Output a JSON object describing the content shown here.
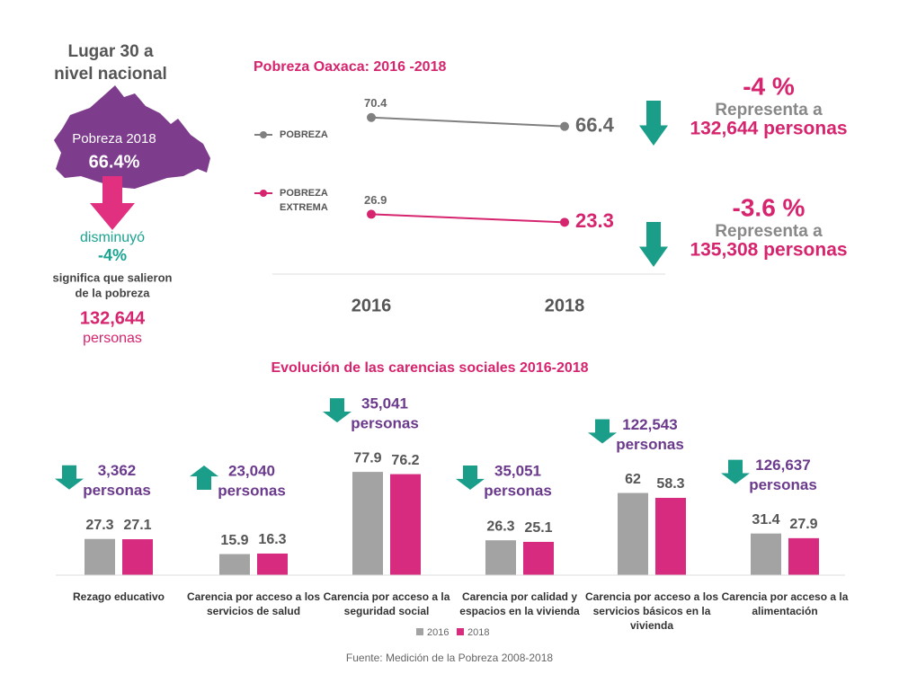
{
  "left_panel": {
    "title_line1": "Lugar 30 a",
    "title_line2": "nivel nacional",
    "map_label": "Pobreza 2018",
    "map_value": "66.4%",
    "change_label": "disminuyó",
    "change_value": "-4%",
    "note_line1": "significa que salieron",
    "note_line2": "de la pobreza",
    "people_count": "132,644",
    "people_unit": "personas"
  },
  "chart_data": [
    {
      "type": "line",
      "title": "Pobreza Oaxaca: 2016 -2018",
      "categories": [
        "2016",
        "2018"
      ],
      "ylim": [
        0,
        80
      ],
      "series": [
        {
          "name": "POBREZA",
          "color": "#808080",
          "values": [
            70.4,
            66.4
          ]
        },
        {
          "name": "POBREZA EXTREMA",
          "color": "#d6246e",
          "values": [
            26.9,
            23.3
          ]
        }
      ],
      "annotations": [
        {
          "change": "-4 %",
          "text": "Representa a",
          "people": "132,644 personas"
        },
        {
          "change": "-3.6 %",
          "text": "Representa a",
          "people": "135,308 personas"
        }
      ]
    },
    {
      "type": "bar",
      "title": "Evolución de las carencias sociales 2016-2018",
      "ylim": [
        0,
        80
      ],
      "legend": "bottom",
      "categories": [
        "Rezago educativo",
        "Carencia por acceso a los servicios de salud",
        "Carencia por acceso a la seguridad social",
        "Carencia por calidad y espacios en la vivienda",
        "Carencia por acceso a los servicios básicos en la vivienda",
        "Carencia por acceso a la alimentación"
      ],
      "series": [
        {
          "name": "2016",
          "color": "#a3a3a3",
          "values": [
            27.3,
            15.9,
            77.9,
            26.3,
            62,
            31.4
          ]
        },
        {
          "name": "2018",
          "color": "#d62b7f",
          "values": [
            27.1,
            16.3,
            76.2,
            25.1,
            58.3,
            27.9
          ]
        }
      ],
      "annotations": [
        {
          "direction": "down",
          "people": "3,362",
          "unit": "personas"
        },
        {
          "direction": "up",
          "people": "23,040",
          "unit": "personas"
        },
        {
          "direction": "down",
          "people": "35,041",
          "unit": "personas"
        },
        {
          "direction": "down",
          "people": "35,051",
          "unit": "personas"
        },
        {
          "direction": "down",
          "people": "122,543",
          "unit": "personas"
        },
        {
          "direction": "down",
          "people": "126,637",
          "unit": "personas"
        }
      ]
    }
  ],
  "source": "Fuente: Medición de la Pobreza 2008-2018"
}
